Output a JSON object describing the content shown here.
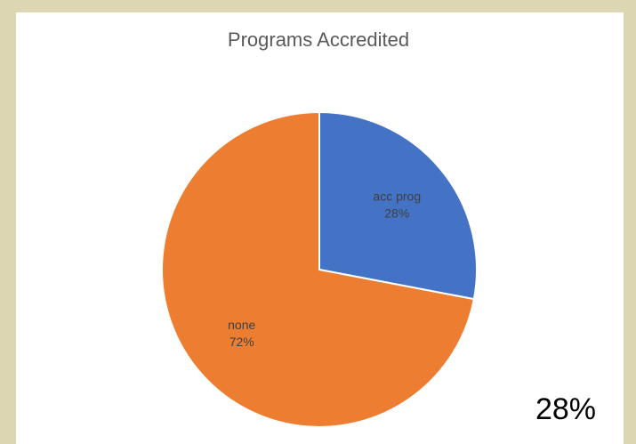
{
  "chart_data": {
    "type": "pie",
    "title": "Programs Accredited",
    "categories": [
      "acc prog",
      "none"
    ],
    "values": [
      28,
      72
    ],
    "value_labels": [
      "28%",
      "72%"
    ],
    "colors": [
      "#4472c4",
      "#ed7d31"
    ],
    "annotation": "28%"
  }
}
